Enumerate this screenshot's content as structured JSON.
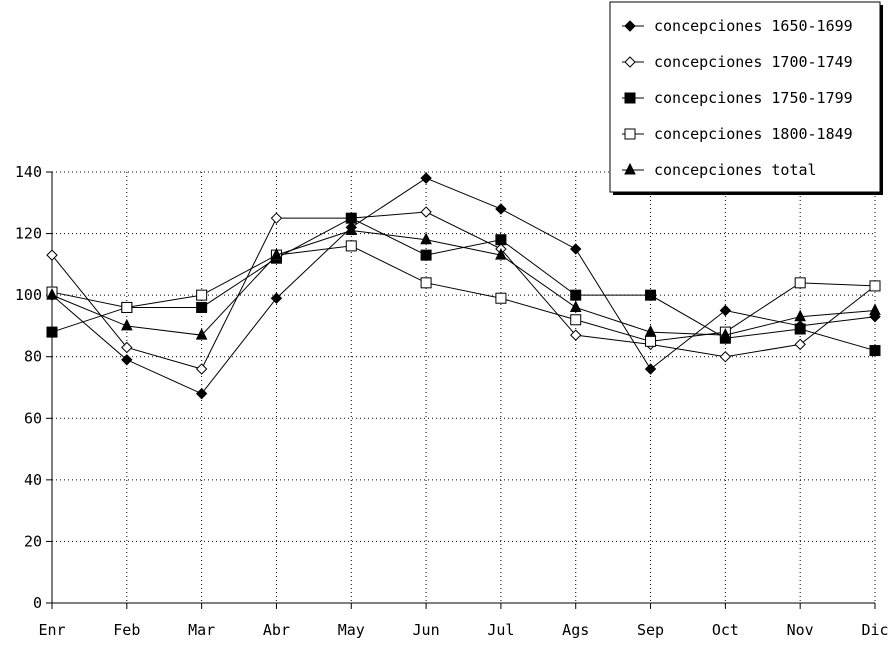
{
  "chart_data": {
    "type": "line",
    "categories": [
      "Enr",
      "Feb",
      "Mar",
      "Abr",
      "May",
      "Jun",
      "Jul",
      "Ags",
      "Sep",
      "Oct",
      "Nov",
      "Dic"
    ],
    "ylim": [
      0,
      140
    ],
    "yticks": [
      0,
      20,
      40,
      60,
      80,
      100,
      120,
      140
    ],
    "grid": true,
    "legend_position": "top-right",
    "series": [
      {
        "name": "concepciones 1650-1699",
        "marker": "diamond-filled",
        "values": [
          100,
          79,
          68,
          99,
          122,
          138,
          128,
          115,
          76,
          95,
          90,
          93
        ]
      },
      {
        "name": "concepciones 1700-1749",
        "marker": "diamond-open",
        "values": [
          113,
          83,
          76,
          125,
          125,
          127,
          115,
          87,
          84,
          80,
          84,
          103
        ]
      },
      {
        "name": "concepciones 1750-1799",
        "marker": "square-filled",
        "values": [
          88,
          96,
          96,
          112,
          125,
          113,
          118,
          100,
          100,
          86,
          89,
          82
        ]
      },
      {
        "name": "concepciones 1800-1849",
        "marker": "square-open",
        "values": [
          101,
          96,
          100,
          113,
          116,
          104,
          99,
          92,
          85,
          88,
          104,
          103
        ]
      },
      {
        "name": "concepciones total",
        "marker": "triangle-filled",
        "values": [
          100,
          90,
          87,
          113,
          121,
          118,
          113,
          96,
          88,
          87,
          93,
          95
        ]
      }
    ]
  }
}
